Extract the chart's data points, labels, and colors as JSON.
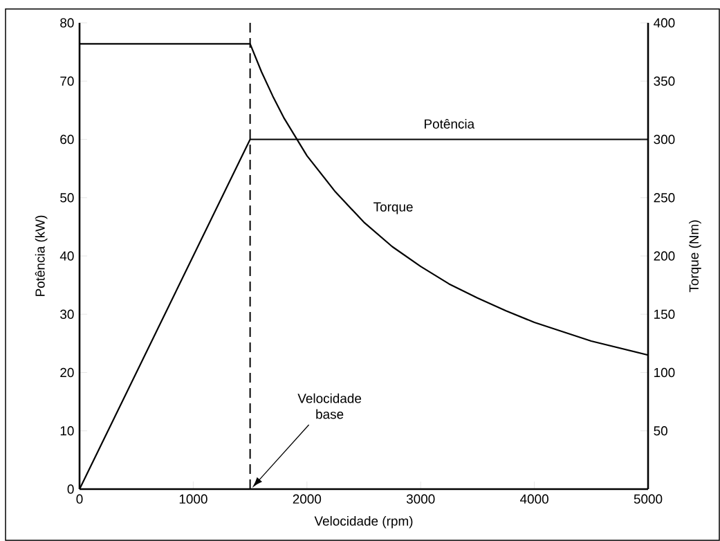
{
  "chart_data": {
    "type": "line",
    "xlabel": "Velocidade (rpm)",
    "ylabel": "Potência (kW)",
    "y2label": "Torque (Nm)",
    "xlim": [
      0,
      5000
    ],
    "xticks": [
      0,
      1000,
      2000,
      3000,
      4000,
      5000
    ],
    "ylim": [
      0,
      80
    ],
    "yticks": [
      0,
      10,
      20,
      30,
      40,
      50,
      60,
      70,
      80
    ],
    "y2lim": [
      0,
      400
    ],
    "y2ticks": [
      50,
      100,
      150,
      200,
      250,
      300,
      350,
      400
    ],
    "marker": "none",
    "line_style": "solid",
    "series": [
      {
        "name": "Potência",
        "color": "#000000",
        "x": [
          0,
          1500,
          5000
        ],
        "values": [
          0,
          60,
          60
        ]
      },
      {
        "name": "Torque",
        "color": "#000000",
        "axis": "y2",
        "x": [
          0,
          1500,
          1600,
          1700,
          1800,
          1900,
          2000,
          2250,
          2500,
          2750,
          3000,
          3250,
          3500,
          3750,
          4000,
          4500,
          5000
        ],
        "values": [
          382,
          382,
          358,
          337,
          318,
          302,
          286,
          255,
          229,
          208,
          191,
          176,
          164,
          153,
          143,
          127,
          115
        ]
      }
    ],
    "ref_lines": [
      {
        "axis": "x",
        "value": 1500,
        "line_style": "dashed",
        "color": "#000000"
      }
    ],
    "annotations": [
      "Velocidade base"
    ]
  }
}
